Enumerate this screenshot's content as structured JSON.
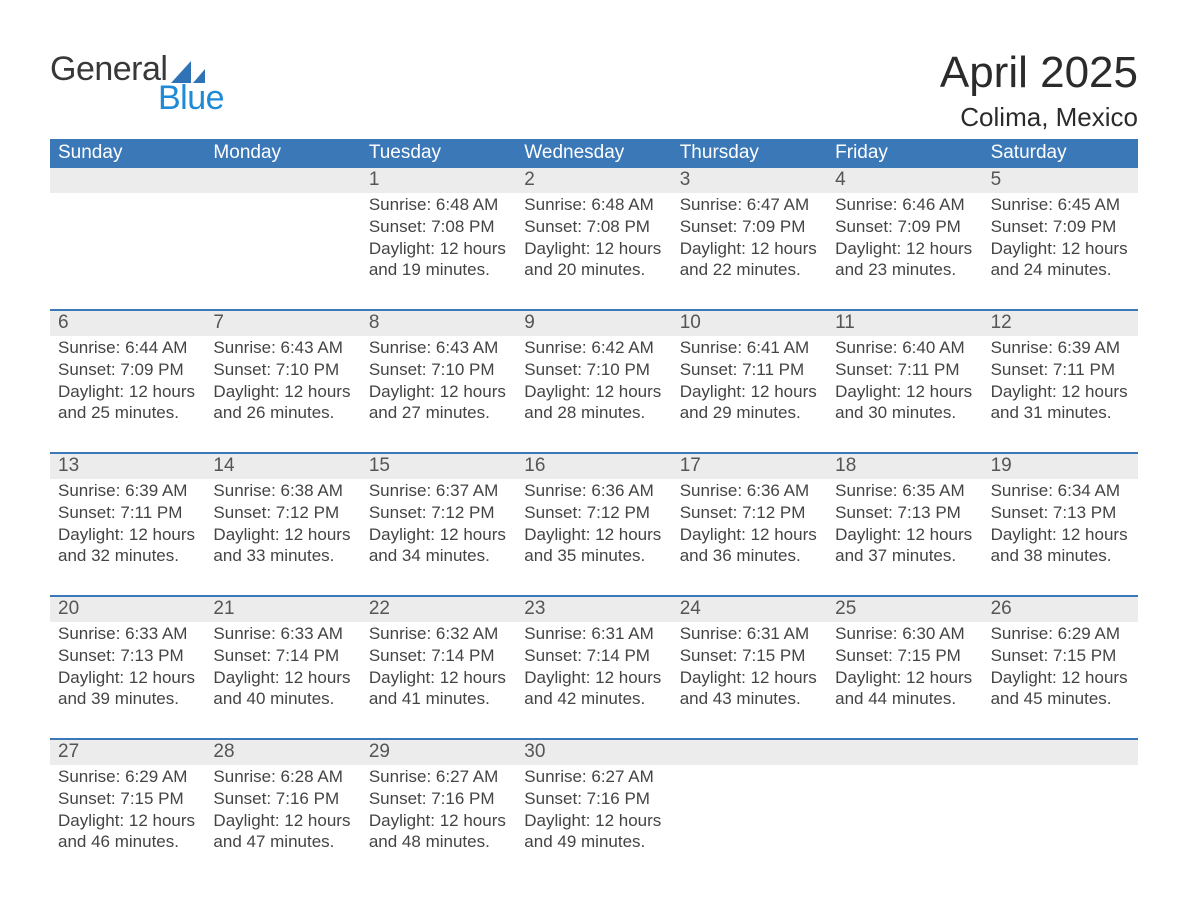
{
  "logo": {
    "word1": "General",
    "word2": "Blue",
    "sail_color": "#2f73b6"
  },
  "title": {
    "month": "April 2025",
    "location": "Colima, Mexico"
  },
  "weekdays": [
    "Sunday",
    "Monday",
    "Tuesday",
    "Wednesday",
    "Thursday",
    "Friday",
    "Saturday"
  ],
  "colors": {
    "header_blue": "#3b78b8",
    "accent_blue": "#1f8ad6",
    "row_grey": "#ececec",
    "text_dark": "#3a3a3a"
  },
  "weeks": [
    [
      null,
      null,
      {
        "n": "1",
        "sr": "Sunrise: 6:48 AM",
        "ss": "Sunset: 7:08 PM",
        "d1": "Daylight: 12 hours",
        "d2": "and 19 minutes."
      },
      {
        "n": "2",
        "sr": "Sunrise: 6:48 AM",
        "ss": "Sunset: 7:08 PM",
        "d1": "Daylight: 12 hours",
        "d2": "and 20 minutes."
      },
      {
        "n": "3",
        "sr": "Sunrise: 6:47 AM",
        "ss": "Sunset: 7:09 PM",
        "d1": "Daylight: 12 hours",
        "d2": "and 22 minutes."
      },
      {
        "n": "4",
        "sr": "Sunrise: 6:46 AM",
        "ss": "Sunset: 7:09 PM",
        "d1": "Daylight: 12 hours",
        "d2": "and 23 minutes."
      },
      {
        "n": "5",
        "sr": "Sunrise: 6:45 AM",
        "ss": "Sunset: 7:09 PM",
        "d1": "Daylight: 12 hours",
        "d2": "and 24 minutes."
      }
    ],
    [
      {
        "n": "6",
        "sr": "Sunrise: 6:44 AM",
        "ss": "Sunset: 7:09 PM",
        "d1": "Daylight: 12 hours",
        "d2": "and 25 minutes."
      },
      {
        "n": "7",
        "sr": "Sunrise: 6:43 AM",
        "ss": "Sunset: 7:10 PM",
        "d1": "Daylight: 12 hours",
        "d2": "and 26 minutes."
      },
      {
        "n": "8",
        "sr": "Sunrise: 6:43 AM",
        "ss": "Sunset: 7:10 PM",
        "d1": "Daylight: 12 hours",
        "d2": "and 27 minutes."
      },
      {
        "n": "9",
        "sr": "Sunrise: 6:42 AM",
        "ss": "Sunset: 7:10 PM",
        "d1": "Daylight: 12 hours",
        "d2": "and 28 minutes."
      },
      {
        "n": "10",
        "sr": "Sunrise: 6:41 AM",
        "ss": "Sunset: 7:11 PM",
        "d1": "Daylight: 12 hours",
        "d2": "and 29 minutes."
      },
      {
        "n": "11",
        "sr": "Sunrise: 6:40 AM",
        "ss": "Sunset: 7:11 PM",
        "d1": "Daylight: 12 hours",
        "d2": "and 30 minutes."
      },
      {
        "n": "12",
        "sr": "Sunrise: 6:39 AM",
        "ss": "Sunset: 7:11 PM",
        "d1": "Daylight: 12 hours",
        "d2": "and 31 minutes."
      }
    ],
    [
      {
        "n": "13",
        "sr": "Sunrise: 6:39 AM",
        "ss": "Sunset: 7:11 PM",
        "d1": "Daylight: 12 hours",
        "d2": "and 32 minutes."
      },
      {
        "n": "14",
        "sr": "Sunrise: 6:38 AM",
        "ss": "Sunset: 7:12 PM",
        "d1": "Daylight: 12 hours",
        "d2": "and 33 minutes."
      },
      {
        "n": "15",
        "sr": "Sunrise: 6:37 AM",
        "ss": "Sunset: 7:12 PM",
        "d1": "Daylight: 12 hours",
        "d2": "and 34 minutes."
      },
      {
        "n": "16",
        "sr": "Sunrise: 6:36 AM",
        "ss": "Sunset: 7:12 PM",
        "d1": "Daylight: 12 hours",
        "d2": "and 35 minutes."
      },
      {
        "n": "17",
        "sr": "Sunrise: 6:36 AM",
        "ss": "Sunset: 7:12 PM",
        "d1": "Daylight: 12 hours",
        "d2": "and 36 minutes."
      },
      {
        "n": "18",
        "sr": "Sunrise: 6:35 AM",
        "ss": "Sunset: 7:13 PM",
        "d1": "Daylight: 12 hours",
        "d2": "and 37 minutes."
      },
      {
        "n": "19",
        "sr": "Sunrise: 6:34 AM",
        "ss": "Sunset: 7:13 PM",
        "d1": "Daylight: 12 hours",
        "d2": "and 38 minutes."
      }
    ],
    [
      {
        "n": "20",
        "sr": "Sunrise: 6:33 AM",
        "ss": "Sunset: 7:13 PM",
        "d1": "Daylight: 12 hours",
        "d2": "and 39 minutes."
      },
      {
        "n": "21",
        "sr": "Sunrise: 6:33 AM",
        "ss": "Sunset: 7:14 PM",
        "d1": "Daylight: 12 hours",
        "d2": "and 40 minutes."
      },
      {
        "n": "22",
        "sr": "Sunrise: 6:32 AM",
        "ss": "Sunset: 7:14 PM",
        "d1": "Daylight: 12 hours",
        "d2": "and 41 minutes."
      },
      {
        "n": "23",
        "sr": "Sunrise: 6:31 AM",
        "ss": "Sunset: 7:14 PM",
        "d1": "Daylight: 12 hours",
        "d2": "and 42 minutes."
      },
      {
        "n": "24",
        "sr": "Sunrise: 6:31 AM",
        "ss": "Sunset: 7:15 PM",
        "d1": "Daylight: 12 hours",
        "d2": "and 43 minutes."
      },
      {
        "n": "25",
        "sr": "Sunrise: 6:30 AM",
        "ss": "Sunset: 7:15 PM",
        "d1": "Daylight: 12 hours",
        "d2": "and 44 minutes."
      },
      {
        "n": "26",
        "sr": "Sunrise: 6:29 AM",
        "ss": "Sunset: 7:15 PM",
        "d1": "Daylight: 12 hours",
        "d2": "and 45 minutes."
      }
    ],
    [
      {
        "n": "27",
        "sr": "Sunrise: 6:29 AM",
        "ss": "Sunset: 7:15 PM",
        "d1": "Daylight: 12 hours",
        "d2": "and 46 minutes."
      },
      {
        "n": "28",
        "sr": "Sunrise: 6:28 AM",
        "ss": "Sunset: 7:16 PM",
        "d1": "Daylight: 12 hours",
        "d2": "and 47 minutes."
      },
      {
        "n": "29",
        "sr": "Sunrise: 6:27 AM",
        "ss": "Sunset: 7:16 PM",
        "d1": "Daylight: 12 hours",
        "d2": "and 48 minutes."
      },
      {
        "n": "30",
        "sr": "Sunrise: 6:27 AM",
        "ss": "Sunset: 7:16 PM",
        "d1": "Daylight: 12 hours",
        "d2": "and 49 minutes."
      },
      null,
      null,
      null
    ]
  ]
}
